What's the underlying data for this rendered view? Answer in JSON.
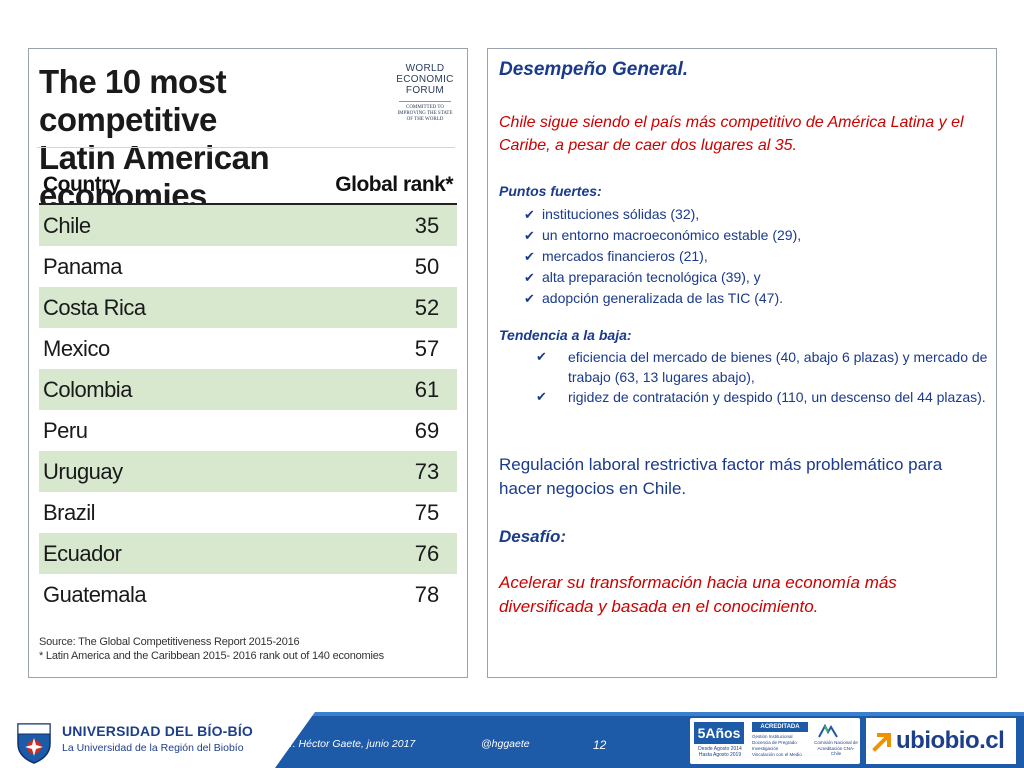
{
  "image_panel": {
    "title_line1": "The 10 most competitive",
    "title_line2": "Latin American economies",
    "wef_logo": {
      "line1": "WORLD",
      "line2": "ECONOMIC",
      "line3": "FORUM",
      "tagline1": "COMMITTED TO",
      "tagline2": "IMPROVING THE STATE",
      "tagline3": "OF THE WORLD"
    },
    "table": {
      "header_country": "Country",
      "header_rank": "Global rank*",
      "rows": [
        {
          "country": "Chile",
          "rank": "35"
        },
        {
          "country": "Panama",
          "rank": "50"
        },
        {
          "country": "Costa Rica",
          "rank": "52"
        },
        {
          "country": "Mexico",
          "rank": "57"
        },
        {
          "country": "Colombia",
          "rank": "61"
        },
        {
          "country": "Peru",
          "rank": "69"
        },
        {
          "country": "Uruguay",
          "rank": "73"
        },
        {
          "country": "Brazil",
          "rank": "75"
        },
        {
          "country": "Ecuador",
          "rank": "76"
        },
        {
          "country": "Guatemala",
          "rank": "78"
        }
      ]
    },
    "source_line1": "Source: The Global Competitiveness Report 2015-2016",
    "source_line2": "* Latin America and the Caribbean 2015- 2016 rank out of 140 economies"
  },
  "text_panel": {
    "heading": "Desempeño General.",
    "intro": "Chile sigue siendo el país más competitivo de América Latina y el Caribe, a pesar de caer dos lugares al 35.",
    "strengths_heading": "Puntos fuertes:",
    "strengths": [
      "instituciones sólidas (32),",
      "un entorno macroeconómico estable (29),",
      "mercados financieros (21),",
      "alta preparación tecnológica (39), y",
      "adopción generalizada de las TIC (47)."
    ],
    "decline_heading": "Tendencia a la baja:",
    "declines": [
      "eficiencia del mercado de bienes (40, abajo 6 plazas) y mercado de trabajo (63, 13 lugares abajo),",
      "rigidez de contratación y despido (110, un descenso del 44 plazas)."
    ],
    "regulation": "Regulación laboral restrictiva factor más problemático para hacer negocios en Chile.",
    "challenge_heading": "Desafío:",
    "challenge": "Acelerar su transformación hacia una economía más diversificada y basada en el conocimiento."
  },
  "footer": {
    "university": "UNIVERSIDAD DEL BÍO-BÍO",
    "university_sub": "La Universidad de la Región del Biobío",
    "author": "Dr. Héctor Gaete,  junio 2017",
    "handle": "@hggaete",
    "page_number": "12",
    "accreditation": {
      "years": "5Años",
      "dates_line1": "Desde Agosto 2014",
      "dates_line2": "Hasta Agosto 2019",
      "status": "ACREDITADA",
      "areas": [
        "Gestión Institucional",
        "Docencia de Pregrado",
        "Investigación",
        "Vinculación con el Medio"
      ],
      "agency": "Comisión Nacional de Acreditación CNA-Chile"
    },
    "site": "ubiobio.cl"
  },
  "colors": {
    "footer_blue": "#1d5aa8",
    "text_blue": "#1a3a8c",
    "text_red": "#cc0000",
    "table_stripe": "#d7e8cf"
  }
}
